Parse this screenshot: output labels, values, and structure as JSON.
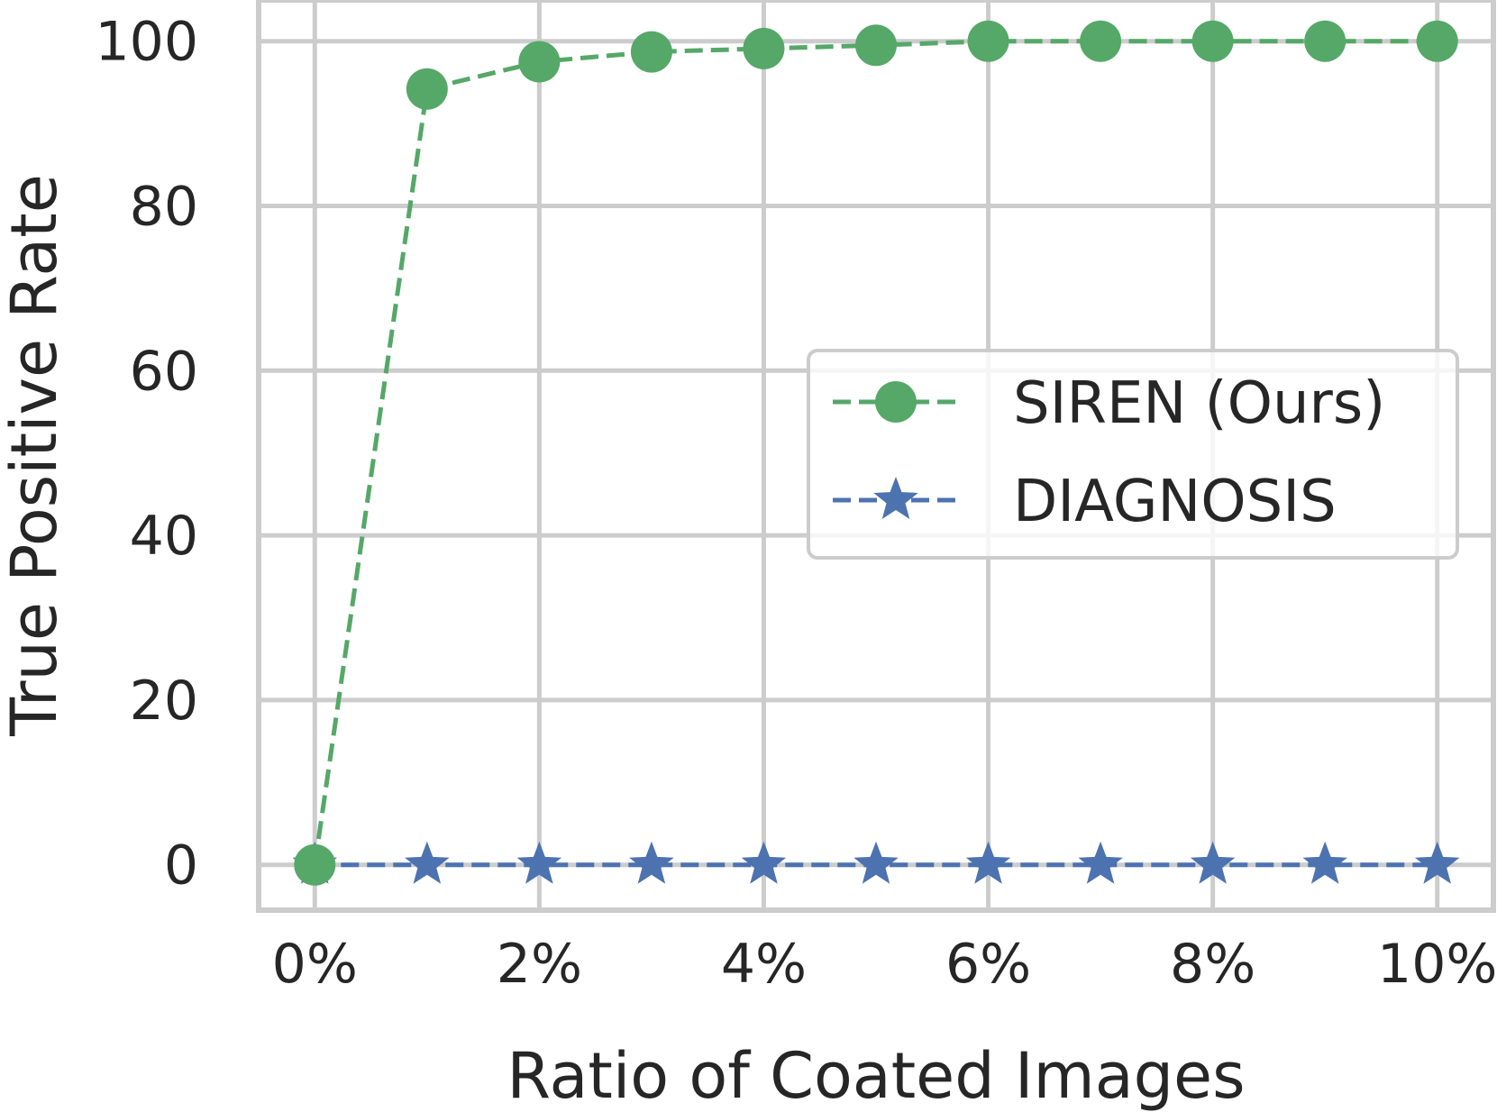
{
  "chart_data": {
    "type": "line",
    "title": "",
    "xlabel": "Ratio of Coated Images",
    "ylabel": "True Positive Rate",
    "x": [
      0,
      1,
      2,
      3,
      4,
      5,
      6,
      7,
      8,
      9,
      10
    ],
    "xlim": [
      -0.5,
      10.5
    ],
    "ylim": [
      -5.5,
      105
    ],
    "xticks": [
      0,
      2,
      4,
      6,
      8,
      10
    ],
    "xtick_labels": [
      "0%",
      "2%",
      "4%",
      "6%",
      "8%",
      "10%"
    ],
    "yticks": [
      0,
      20,
      40,
      60,
      80,
      100
    ],
    "ytick_labels": [
      "0",
      "20",
      "40",
      "60",
      "80",
      "100"
    ],
    "grid": true,
    "legend_position": "center-right",
    "series": [
      {
        "name": "SIREN (Ours)",
        "color": "#55a868",
        "marker": "circle",
        "linestyle": "dashed",
        "values": [
          0,
          94.2,
          97.5,
          98.7,
          99.1,
          99.5,
          100,
          100,
          100,
          100,
          100
        ]
      },
      {
        "name": "DIAGNOSIS",
        "color": "#4c72b0",
        "marker": "star",
        "linestyle": "dashed",
        "values": [
          0,
          0,
          0,
          0,
          0,
          0,
          0,
          0,
          0,
          0,
          0
        ]
      }
    ]
  }
}
